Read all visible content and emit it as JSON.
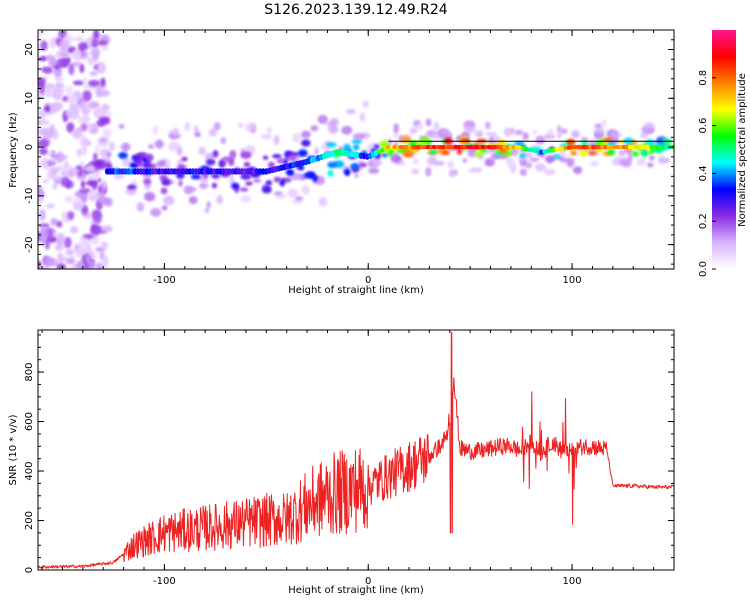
{
  "title": "S126.2023.139.12.49.R24",
  "chart_data": [
    {
      "type": "heatmap",
      "xlabel": "Height of straight line (km)",
      "ylabel": "Frequency (Hz)",
      "xlim": [
        -162,
        150
      ],
      "ylim": [
        -25,
        24
      ],
      "xticks": [
        -100,
        0,
        100
      ],
      "yticks": [
        -20,
        -10,
        0,
        10,
        20
      ],
      "colorbar": {
        "label": "Normalized spectral amplitude",
        "range": [
          0,
          1
        ],
        "ticks": [
          0.0,
          0.2,
          0.4,
          0.6,
          0.8
        ],
        "colors": [
          "#ffffff",
          "#d9b3ff",
          "#8a2be2",
          "#0000ff",
          "#00ffff",
          "#00ff00",
          "#ffff00",
          "#ff8000",
          "#ff0000",
          "#ff1493"
        ]
      },
      "ridge": [
        {
          "x": -125,
          "y": -5,
          "amp": 0.35
        },
        {
          "x": -100,
          "y": -5,
          "amp": 0.3
        },
        {
          "x": -75,
          "y": -5,
          "amp": 0.3
        },
        {
          "x": -50,
          "y": -5,
          "amp": 0.3
        },
        {
          "x": -30,
          "y": -3,
          "amp": 0.35
        },
        {
          "x": -15,
          "y": -1,
          "amp": 0.5
        },
        {
          "x": 0,
          "y": -2,
          "amp": 0.35
        },
        {
          "x": 10,
          "y": 0,
          "amp": 0.7
        },
        {
          "x": 30,
          "y": 0,
          "amp": 0.85
        },
        {
          "x": 60,
          "y": 0,
          "amp": 0.9
        },
        {
          "x": 72,
          "y": 0,
          "amp": 0.7
        },
        {
          "x": 85,
          "y": -1,
          "amp": 0.4
        },
        {
          "x": 100,
          "y": 0,
          "amp": 0.85
        },
        {
          "x": 125,
          "y": 0,
          "amp": 0.75
        },
        {
          "x": 148,
          "y": 0,
          "amp": 0.5
        }
      ]
    },
    {
      "type": "line",
      "xlabel": "Height of straight line (km)",
      "ylabel": "SNR (10 * v/v)",
      "xlim": [
        -162,
        150
      ],
      "ylim": [
        0,
        970
      ],
      "xticks": [
        -100,
        0,
        100
      ],
      "yticks": [
        0,
        200,
        400,
        600,
        800
      ],
      "color": "#ff0000",
      "series": [
        {
          "x": [
            -162,
            -140,
            -125,
            -115,
            -100,
            -90,
            -80,
            -70,
            -60,
            -50,
            -40,
            -30,
            -20,
            -10,
            0,
            10,
            20,
            30,
            35,
            40,
            42,
            45,
            50,
            55,
            60,
            65,
            70,
            75,
            80,
            85,
            90,
            95,
            100,
            105,
            110,
            115,
            117,
            120,
            130,
            140,
            150
          ],
          "y": [
            12,
            15,
            30,
            100,
            150,
            160,
            170,
            180,
            190,
            200,
            205,
            260,
            300,
            320,
            340,
            380,
            420,
            460,
            500,
            560,
            780,
            490,
            480,
            480,
            490,
            500,
            500,
            480,
            520,
            470,
            520,
            480,
            480,
            500,
            500,
            490,
            490,
            340,
            340,
            335,
            335
          ]
        }
      ]
    }
  ]
}
